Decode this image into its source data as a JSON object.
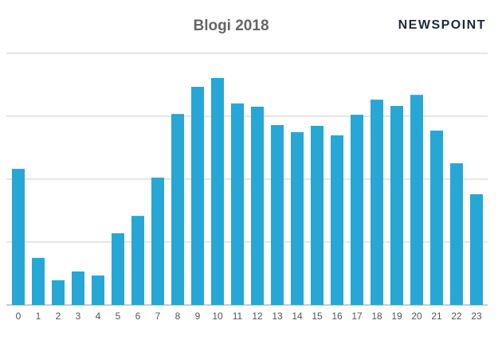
{
  "chart_data": {
    "type": "bar",
    "title": "Blogi 2018",
    "logo": "NEWSPOINT",
    "categories": [
      "0",
      "1",
      "2",
      "3",
      "4",
      "5",
      "6",
      "7",
      "8",
      "9",
      "10",
      "11",
      "12",
      "13",
      "14",
      "15",
      "16",
      "17",
      "18",
      "19",
      "20",
      "21",
      "22",
      "23"
    ],
    "values": [
      54.1,
      18.7,
      9.8,
      13.3,
      11.7,
      28.5,
      35.4,
      50.6,
      75.9,
      86.7,
      90.2,
      80.1,
      78.8,
      71.5,
      68.7,
      71.2,
      67.4,
      75.6,
      81.6,
      79.1,
      83.5,
      69.3,
      56.3,
      44.0
    ],
    "color": "#27a7d6",
    "ylim": [
      0,
      100
    ],
    "yticks": [
      0,
      25,
      50,
      75,
      100
    ],
    "grid": true
  }
}
